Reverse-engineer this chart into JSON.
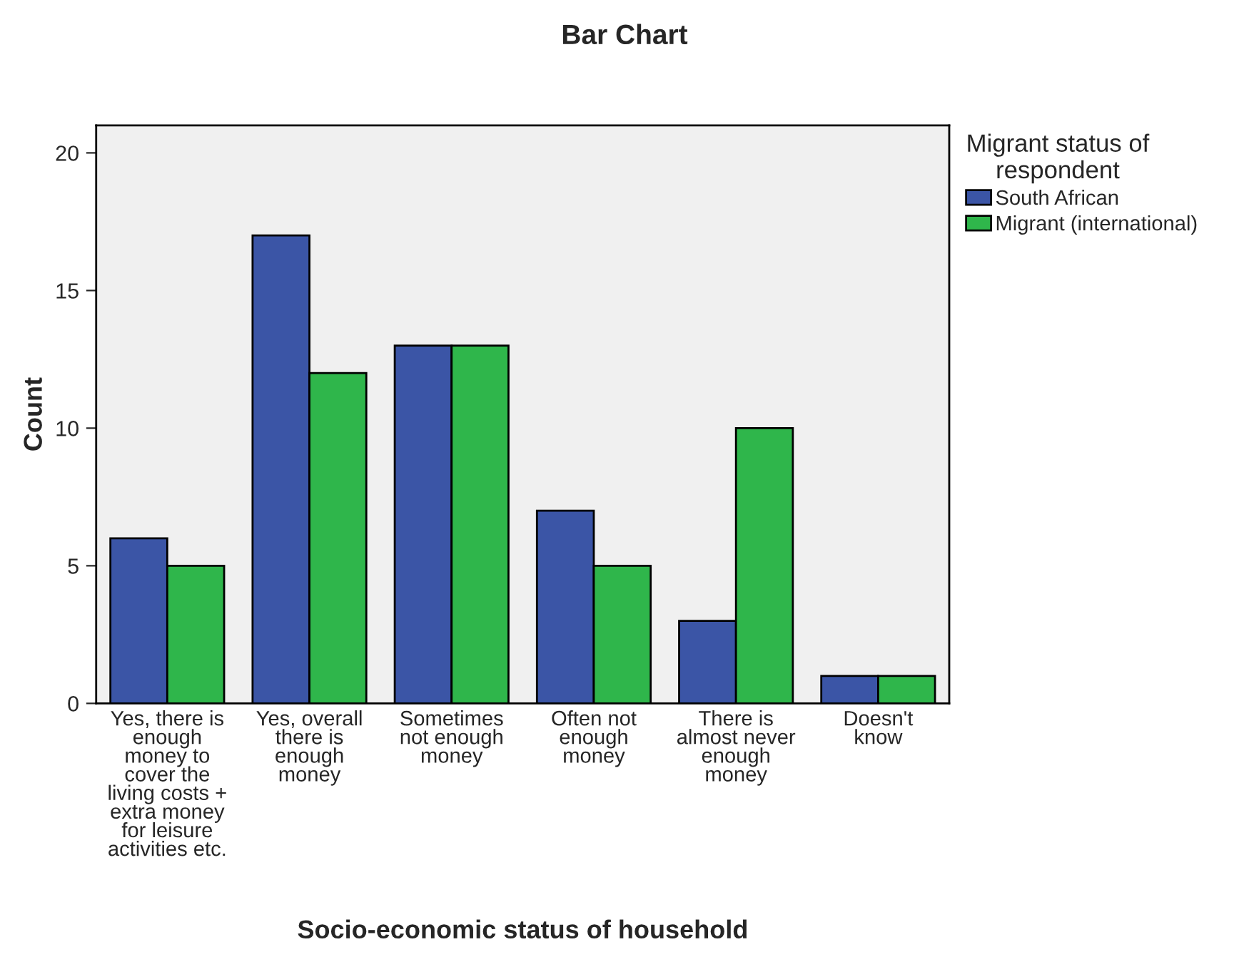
{
  "chart_data": {
    "type": "bar",
    "title": "Bar Chart",
    "xlabel": "Socio-economic status of household",
    "ylabel": "Count",
    "legend_title": "Migrant status of\nrespondent",
    "categories": [
      "Yes, there is\nenough\nmoney to\ncover the\nliving costs +\nextra money\nfor leisure\nactivities etc.",
      "Yes, overall\nthere is\nenough\nmoney",
      "Sometimes\nnot enough\nmoney",
      "Often not\nenough\nmoney",
      "There is\nalmost never\nenough\nmoney",
      "Doesn't\nknow"
    ],
    "series": [
      {
        "name": "South African",
        "color": "#3b55a6",
        "values": [
          6,
          17,
          13,
          7,
          3,
          1
        ]
      },
      {
        "name": "Migrant (international)",
        "color": "#2fb64b",
        "values": [
          5,
          12,
          13,
          5,
          10,
          1
        ]
      }
    ],
    "ylim": [
      0,
      21
    ],
    "yticks": [
      0,
      5,
      10,
      15,
      20
    ],
    "grid": false,
    "legend": "right"
  }
}
